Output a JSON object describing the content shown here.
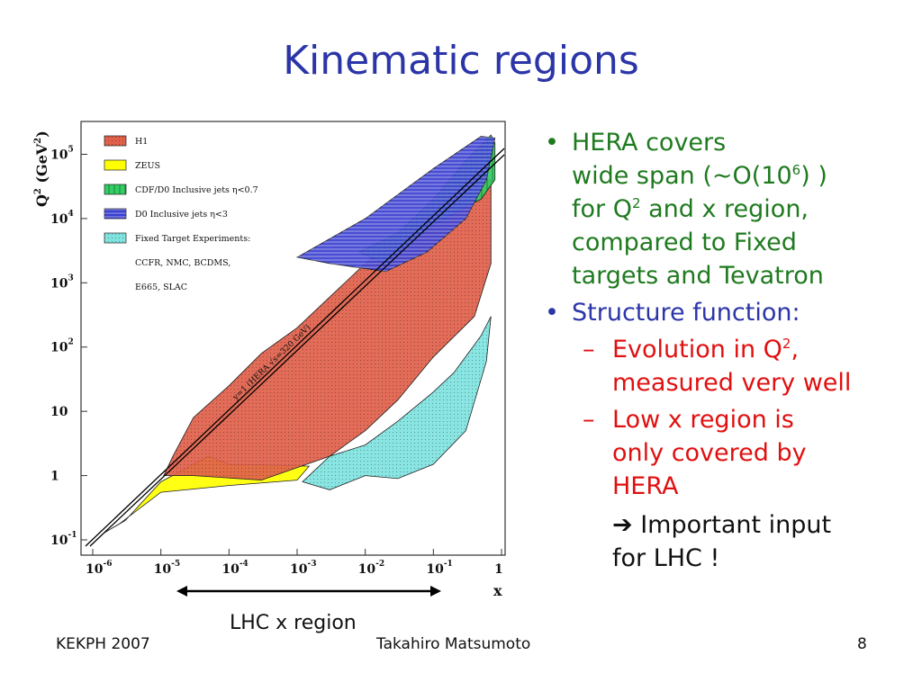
{
  "slide": {
    "title": "Kinematic regions",
    "footer_left": "KEKPH 2007",
    "footer_center": "Takahiro Matsumoto",
    "footer_right": "8",
    "lhc_label": "LHC x region"
  },
  "bullets": {
    "b1_l1": "HERA covers",
    "b1_l2a": "wide span (~O(10",
    "b1_l2sup": "6",
    "b1_l2b": ") )",
    "b1_l3a": "for Q",
    "b1_l3sup": "2",
    "b1_l3b": " and x region,",
    "b1_l4": "compared to Fixed",
    "b1_l5": "targets and Tevatron",
    "b2": "Structure function:",
    "s1_l1a": "Evolution in Q",
    "s1_l1sup": "2",
    "s1_l1b": ",",
    "s1_l2": "measured very well",
    "s2_l1": "Low x region is",
    "s2_l2": "only covered by",
    "s2_l3": "HERA",
    "imp_l1": "Important input",
    "imp_l2": "for LHC !"
  },
  "colors": {
    "title": "#2b35a8",
    "h1": "#e0604a",
    "zeus": "#ffff00",
    "cdf": "#33cc66",
    "d0": "#3a3fd0",
    "fixed": "#7fe3e0",
    "bullet_green": "#1f7a1f",
    "bullet_red": "#e01010"
  },
  "chart_data": {
    "type": "area",
    "xscale": "log",
    "yscale": "log",
    "xlim": [
      1e-06,
      1
    ],
    "ylim": [
      0.1,
      200000
    ],
    "xlabel": "x",
    "ylabel_base": "Q",
    "ylabel_sup": "2",
    "ylabel_unit": " (GeV",
    "ylabel_unit_sup": "2",
    "ylabel_end": ")",
    "x_ticks": [
      {
        "v": 1e-06,
        "base": "10",
        "exp": "-6"
      },
      {
        "v": 1e-05,
        "base": "10",
        "exp": "-5"
      },
      {
        "v": 0.0001,
        "base": "10",
        "exp": "-4"
      },
      {
        "v": 0.001,
        "base": "10",
        "exp": "-3"
      },
      {
        "v": 0.01,
        "base": "10",
        "exp": "-2"
      },
      {
        "v": 0.1,
        "base": "10",
        "exp": "-1"
      },
      {
        "v": 1,
        "base": "1",
        "exp": ""
      }
    ],
    "y_ticks": [
      {
        "v": 0.1,
        "base": "10",
        "exp": "-1"
      },
      {
        "v": 1,
        "base": "1",
        "exp": ""
      },
      {
        "v": 10,
        "base": "10",
        "exp": ""
      },
      {
        "v": 100,
        "base": "10",
        "exp": "2"
      },
      {
        "v": 1000,
        "base": "10",
        "exp": "3"
      },
      {
        "v": 10000,
        "base": "10",
        "exp": "4"
      },
      {
        "v": 100000,
        "base": "10",
        "exp": "5"
      }
    ],
    "kinematic_limit_label": "y=1 (HERA √s=320 GeV)",
    "legend": [
      {
        "label": "H1",
        "color_key": "h1",
        "hatch": "dots"
      },
      {
        "label": "ZEUS",
        "color_key": "zeus",
        "hatch": "none"
      },
      {
        "label": "CDF/D0   Inclusive jets η<0.7",
        "color_key": "cdf",
        "hatch": "vert"
      },
      {
        "label": "D0  Inclusive jets η<3",
        "color_key": "d0",
        "hatch": "horiz"
      },
      {
        "label": "Fixed Target Experiments:",
        "color_key": "fixed",
        "hatch": "dots"
      },
      {
        "label": "CCFR, NMC, BCDMS,",
        "color_key": "",
        "hatch": ""
      },
      {
        "label": "E665, SLAC",
        "color_key": "",
        "hatch": ""
      }
    ],
    "regions": [
      {
        "name": "ZEUS",
        "color_key": "zeus",
        "hatch": "none",
        "points": [
          [
            1.5e-06,
            0.13
          ],
          [
            2.5e-06,
            0.18
          ],
          [
            1e-05,
            0.55
          ],
          [
            0.0001,
            0.7
          ],
          [
            0.001,
            0.85
          ],
          [
            0.0015,
            1.4
          ],
          [
            0.0001,
            1.5
          ],
          [
            5e-05,
            2
          ],
          [
            1e-05,
            0.8
          ],
          [
            3e-06,
            0.2
          ]
        ]
      },
      {
        "name": "H1",
        "color_key": "h1",
        "hatch": "dots",
        "points": [
          [
            1.1e-05,
            1
          ],
          [
            3e-05,
            1
          ],
          [
            0.0003,
            0.85
          ],
          [
            0.003,
            2
          ],
          [
            0.01,
            5
          ],
          [
            0.03,
            15
          ],
          [
            0.1,
            70
          ],
          [
            0.4,
            300
          ],
          [
            0.7,
            2000
          ],
          [
            0.7,
            40000
          ],
          [
            0.3,
            40000
          ],
          [
            0.01,
            2000
          ],
          [
            0.001,
            200
          ],
          [
            0.0003,
            80
          ],
          [
            0.0001,
            25
          ],
          [
            3e-05,
            8
          ],
          [
            1.5e-05,
            2
          ]
        ]
      },
      {
        "name": "Fixed Target",
        "color_key": "fixed",
        "hatch": "dots",
        "points": [
          [
            0.0012,
            0.8
          ],
          [
            0.003,
            0.6
          ],
          [
            0.01,
            1
          ],
          [
            0.03,
            0.9
          ],
          [
            0.1,
            1.5
          ],
          [
            0.3,
            5
          ],
          [
            0.6,
            60
          ],
          [
            0.7,
            300
          ],
          [
            0.5,
            150
          ],
          [
            0.2,
            40
          ],
          [
            0.1,
            20
          ],
          [
            0.03,
            7
          ],
          [
            0.01,
            3
          ],
          [
            0.003,
            2
          ]
        ]
      },
      {
        "name": "CDF/D0 eta<0.7",
        "color_key": "cdf",
        "hatch": "vert",
        "points": [
          [
            0.008,
            3000
          ],
          [
            0.03,
            6000
          ],
          [
            0.1,
            20000
          ],
          [
            0.3,
            80000
          ],
          [
            0.7,
            200000
          ],
          [
            0.8,
            150000
          ],
          [
            0.8,
            40000
          ],
          [
            0.5,
            20000
          ],
          [
            0.1,
            8000
          ],
          [
            0.02,
            2000
          ]
        ]
      },
      {
        "name": "D0 eta<3",
        "color_key": "d0",
        "hatch": "horiz",
        "points": [
          [
            0.001,
            2500
          ],
          [
            0.003,
            2000
          ],
          [
            0.02,
            1500
          ],
          [
            0.08,
            3000
          ],
          [
            0.3,
            10000
          ],
          [
            0.6,
            40000
          ],
          [
            0.8,
            180000
          ],
          [
            0.5,
            190000
          ],
          [
            0.1,
            60000
          ],
          [
            0.01,
            10000
          ]
        ]
      }
    ],
    "grid": false,
    "legend_position": "top-left"
  }
}
